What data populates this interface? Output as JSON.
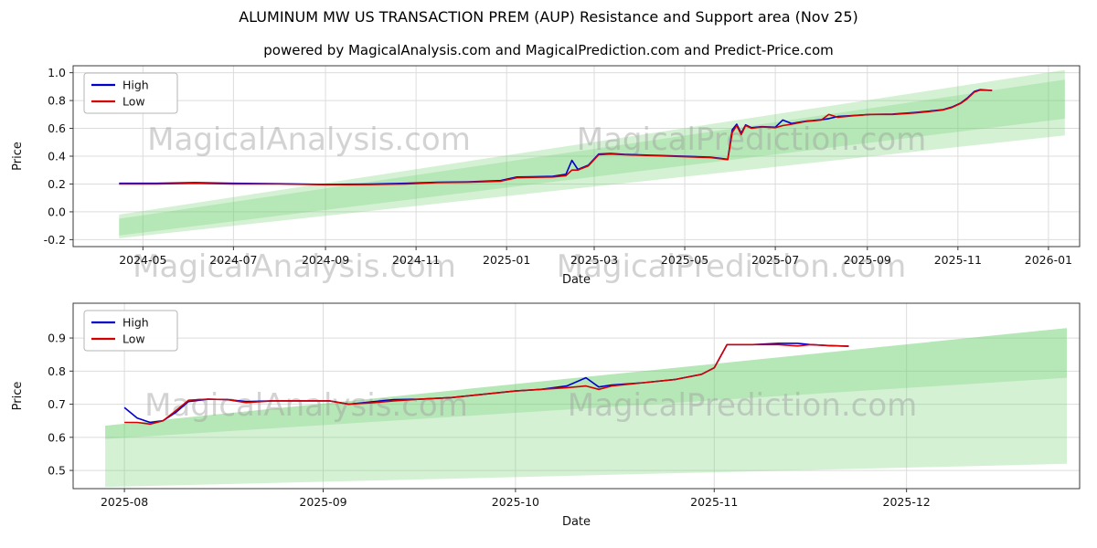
{
  "page": {
    "title": "ALUMINUM MW US TRANSACTION PREM (AUP) Resistance and Support area (Nov 25)",
    "subtitle": "powered by MagicalAnalysis.com and MagicalPrediction.com and Predict-Price.com"
  },
  "watermarks": {
    "analysis": "MagicalAnalysis.com",
    "prediction": "MagicalPrediction.com"
  },
  "chart_data": [
    {
      "type": "line",
      "title": "",
      "xlabel": "Date",
      "ylabel": "Price",
      "legend_position": "upper-left",
      "grid": true,
      "xlim": [
        "2024-03-15",
        "2026-01-22"
      ],
      "ylim": [
        -0.25,
        1.05
      ],
      "xticks": [
        "2024-05",
        "2024-07",
        "2024-09",
        "2024-11",
        "2025-01",
        "2025-03",
        "2025-05",
        "2025-07",
        "2025-09",
        "2025-11",
        "2026-01"
      ],
      "yticks": [
        -0.2,
        0.0,
        0.2,
        0.4,
        0.6,
        0.8,
        1.0
      ],
      "x": [
        "2024-04-15",
        "2024-05-10",
        "2024-06-05",
        "2024-07-01",
        "2024-08-01",
        "2024-09-01",
        "2024-10-01",
        "2024-10-25",
        "2024-11-15",
        "2024-12-05",
        "2024-12-28",
        "2025-01-08",
        "2025-01-18",
        "2025-02-01",
        "2025-02-10",
        "2025-02-14",
        "2025-02-18",
        "2025-02-25",
        "2025-03-04",
        "2025-03-12",
        "2025-03-22",
        "2025-04-05",
        "2025-04-20",
        "2025-05-05",
        "2025-05-18",
        "2025-05-26",
        "2025-05-30",
        "2025-06-02",
        "2025-06-05",
        "2025-06-08",
        "2025-06-11",
        "2025-06-15",
        "2025-06-22",
        "2025-07-01",
        "2025-07-06",
        "2025-07-12",
        "2025-07-22",
        "2025-08-01",
        "2025-08-06",
        "2025-08-12",
        "2025-08-22",
        "2025-09-03",
        "2025-09-18",
        "2025-10-02",
        "2025-10-12",
        "2025-10-22",
        "2025-10-28",
        "2025-11-03",
        "2025-11-07",
        "2025-11-12",
        "2025-11-16",
        "2025-11-24"
      ],
      "series": [
        {
          "name": "High",
          "color": "#0000cc",
          "values": [
            0.205,
            0.205,
            0.21,
            0.205,
            0.202,
            0.197,
            0.2,
            0.205,
            0.213,
            0.215,
            0.225,
            0.25,
            0.252,
            0.255,
            0.27,
            0.37,
            0.305,
            0.335,
            0.415,
            0.42,
            0.413,
            0.408,
            0.403,
            0.398,
            0.393,
            0.383,
            0.378,
            0.59,
            0.63,
            0.565,
            0.625,
            0.605,
            0.612,
            0.608,
            0.66,
            0.635,
            0.652,
            0.662,
            0.67,
            0.685,
            0.692,
            0.7,
            0.703,
            0.713,
            0.723,
            0.735,
            0.753,
            0.783,
            0.815,
            0.865,
            0.878,
            0.873
          ]
        },
        {
          "name": "Low",
          "color": "#d40000",
          "values": [
            0.2,
            0.2,
            0.205,
            0.2,
            0.2,
            0.195,
            0.196,
            0.2,
            0.21,
            0.212,
            0.22,
            0.245,
            0.248,
            0.25,
            0.26,
            0.3,
            0.3,
            0.33,
            0.41,
            0.415,
            0.41,
            0.405,
            0.4,
            0.395,
            0.39,
            0.38,
            0.375,
            0.57,
            0.62,
            0.555,
            0.62,
            0.6,
            0.61,
            0.605,
            0.62,
            0.63,
            0.65,
            0.66,
            0.7,
            0.68,
            0.69,
            0.7,
            0.7,
            0.71,
            0.72,
            0.732,
            0.75,
            0.78,
            0.81,
            0.86,
            0.875,
            0.873
          ]
        }
      ],
      "bands": [
        {
          "x": [
            "2024-04-15",
            "2026-01-12"
          ],
          "top": [
            -0.02,
            1.02
          ],
          "bottom": [
            -0.19,
            0.55
          ],
          "color": "#6fcf6f",
          "opacity": 0.3
        },
        {
          "x": [
            "2024-04-15",
            "2026-01-12"
          ],
          "top": [
            -0.05,
            0.95
          ],
          "bottom": [
            -0.17,
            0.67
          ],
          "color": "#6fcf6f",
          "opacity": 0.3
        }
      ]
    },
    {
      "type": "line",
      "title": "",
      "xlabel": "Date",
      "ylabel": "Price",
      "legend_position": "upper-left",
      "grid": true,
      "xlim": [
        "2025-07-24",
        "2025-12-28"
      ],
      "ylim": [
        0.445,
        1.005
      ],
      "xticks": [
        "2025-08",
        "2025-09",
        "2025-10",
        "2025-11",
        "2025-12"
      ],
      "yticks": [
        0.5,
        0.6,
        0.7,
        0.8,
        0.9
      ],
      "x": [
        "2025-08-01",
        "2025-08-03",
        "2025-08-05",
        "2025-08-07",
        "2025-08-09",
        "2025-08-11",
        "2025-08-14",
        "2025-08-17",
        "2025-08-20",
        "2025-08-24",
        "2025-08-28",
        "2025-09-02",
        "2025-09-05",
        "2025-09-09",
        "2025-09-12",
        "2025-09-16",
        "2025-09-21",
        "2025-09-26",
        "2025-10-01",
        "2025-10-05",
        "2025-10-09",
        "2025-10-12",
        "2025-10-14",
        "2025-10-16",
        "2025-10-21",
        "2025-10-26",
        "2025-10-30",
        "2025-11-01",
        "2025-11-03",
        "2025-11-07",
        "2025-11-11",
        "2025-11-14",
        "2025-11-16",
        "2025-11-19",
        "2025-11-22"
      ],
      "series": [
        {
          "name": "High",
          "color": "#0000cc",
          "values": [
            0.69,
            0.658,
            0.645,
            0.65,
            0.675,
            0.708,
            0.715,
            0.714,
            0.708,
            0.71,
            0.71,
            0.71,
            0.7,
            0.708,
            0.714,
            0.715,
            0.72,
            0.73,
            0.74,
            0.745,
            0.755,
            0.78,
            0.752,
            0.758,
            0.765,
            0.775,
            0.79,
            0.81,
            0.88,
            0.88,
            0.884,
            0.884,
            0.88,
            0.877,
            0.875
          ]
        },
        {
          "name": "Low",
          "color": "#d40000",
          "values": [
            0.645,
            0.645,
            0.64,
            0.65,
            0.68,
            0.712,
            0.715,
            0.714,
            0.705,
            0.71,
            0.71,
            0.71,
            0.7,
            0.705,
            0.71,
            0.715,
            0.72,
            0.73,
            0.74,
            0.745,
            0.75,
            0.755,
            0.745,
            0.755,
            0.765,
            0.775,
            0.79,
            0.81,
            0.88,
            0.88,
            0.88,
            0.876,
            0.88,
            0.877,
            0.875
          ]
        }
      ],
      "bands": [
        {
          "x": [
            "2025-07-29",
            "2025-12-26"
          ],
          "top": [
            0.635,
            0.93
          ],
          "bottom": [
            0.45,
            0.52
          ],
          "color": "#6fcf6f",
          "opacity": 0.3
        },
        {
          "x": [
            "2025-07-29",
            "2025-12-26"
          ],
          "top": [
            0.635,
            0.93
          ],
          "bottom": [
            0.595,
            0.78
          ],
          "color": "#6fcf6f",
          "opacity": 0.3
        }
      ]
    }
  ]
}
